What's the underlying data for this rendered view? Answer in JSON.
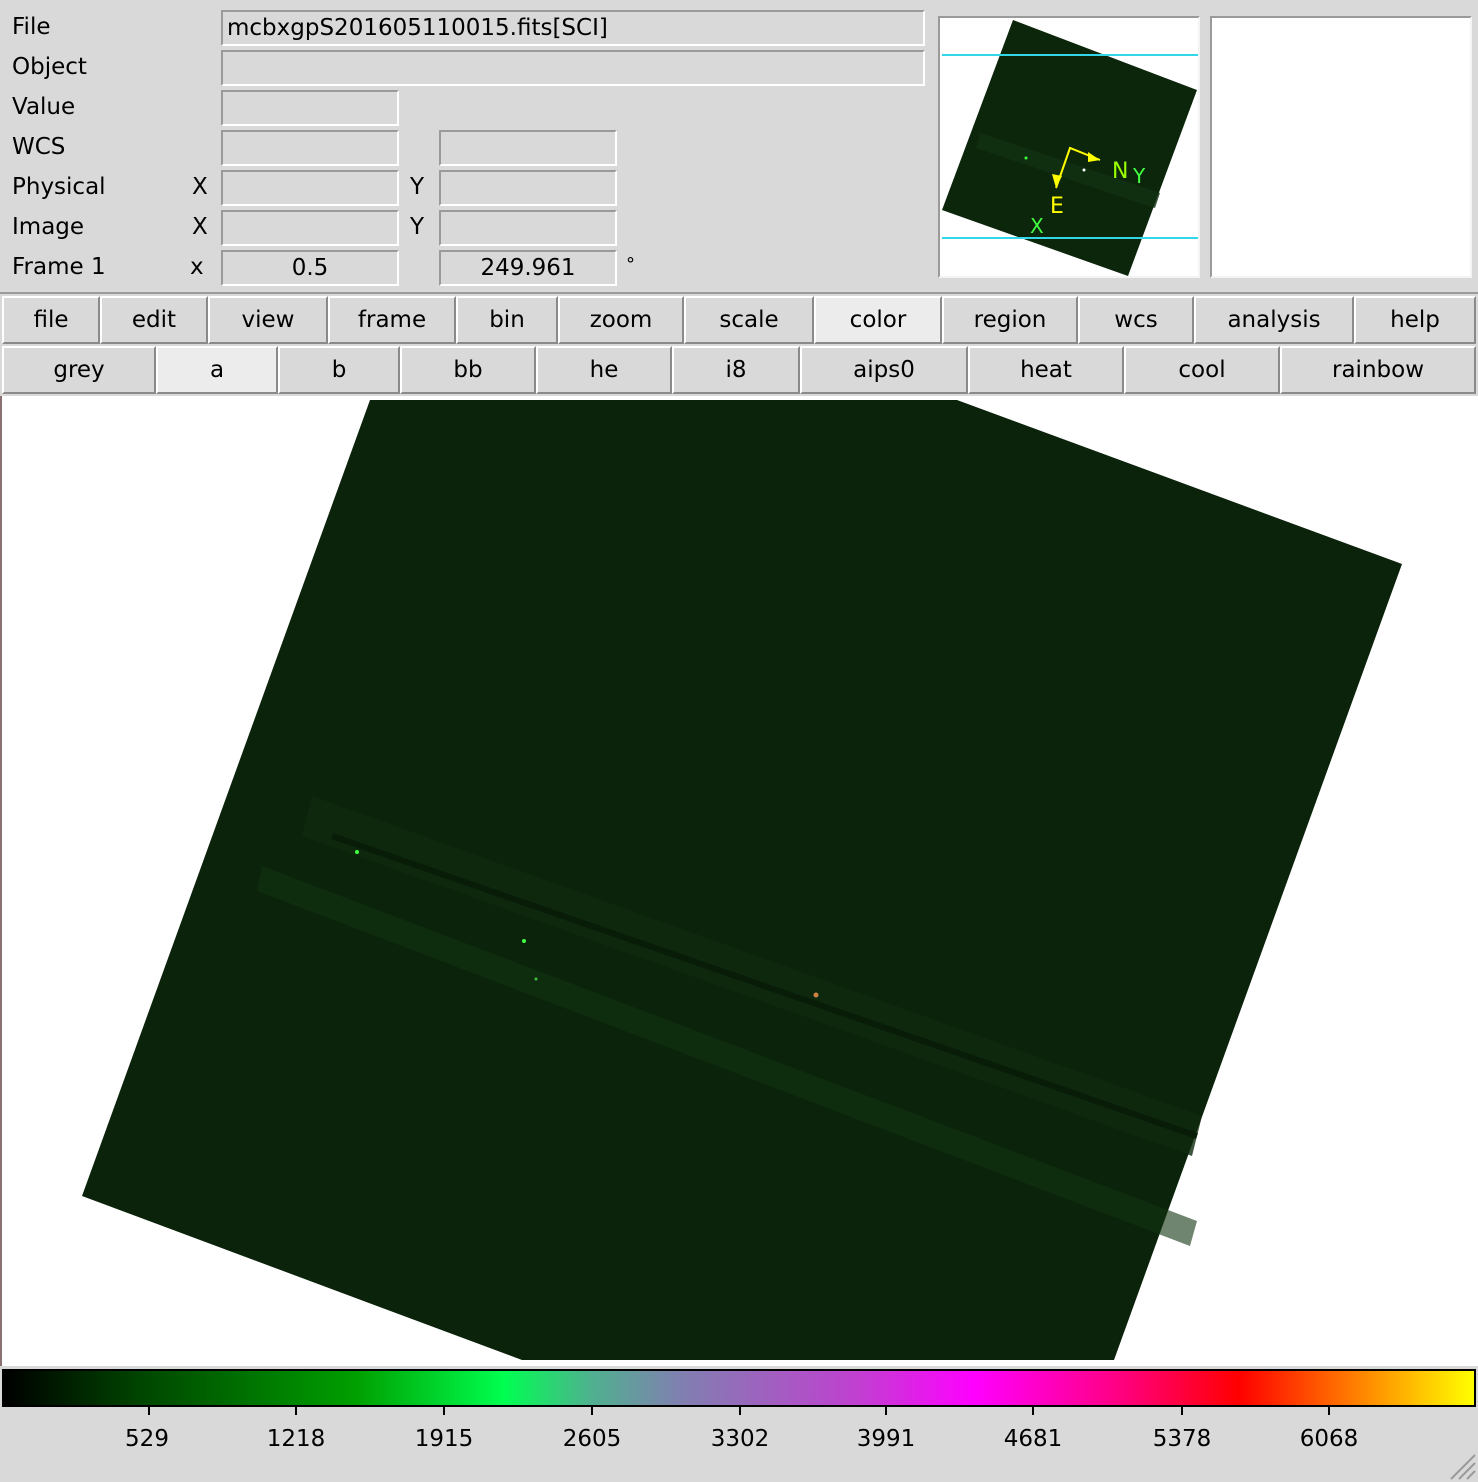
{
  "info_panel": {
    "file_label": "File",
    "file_value": "mcbxgpS201605110015.fits[SCI]",
    "object_label": "Object",
    "object_value": "",
    "value_label": "Value",
    "value_value": "",
    "wcs_label": "WCS",
    "wcs_value_1": "",
    "wcs_value_2": "",
    "physical_label": "Physical",
    "physical_x_label": "X",
    "physical_x_value": "",
    "physical_y_label": "Y",
    "physical_y_value": "",
    "image_label": "Image",
    "image_x_label": "X",
    "image_x_value": "",
    "image_y_label": "Y",
    "image_y_value": "",
    "frame_label": "Frame 1",
    "frame_x_label": "x",
    "frame_zoom_value": "0.5",
    "frame_angle_value": "249.961",
    "frame_angle_unit": "°"
  },
  "panner": {
    "compass_n": "N",
    "compass_e": "E",
    "axis_x": "X",
    "axis_y": "Y"
  },
  "menu_bar": {
    "items": [
      "file",
      "edit",
      "view",
      "frame",
      "bin",
      "zoom",
      "scale",
      "color",
      "region",
      "wcs",
      "analysis",
      "help"
    ],
    "active": "color"
  },
  "colormap_bar": {
    "items": [
      "grey",
      "a",
      "b",
      "bb",
      "he",
      "i8",
      "aips0",
      "heat",
      "cool",
      "rainbow"
    ],
    "active": "a"
  },
  "colorbar": {
    "tick_labels": [
      "529",
      "1218",
      "1915",
      "2605",
      "3302",
      "3991",
      "4681",
      "5378",
      "6068"
    ],
    "colors": [
      "#000000",
      "#00a000",
      "#00ff50",
      "#ff00ff",
      "#ff0000",
      "#ffff00"
    ]
  }
}
